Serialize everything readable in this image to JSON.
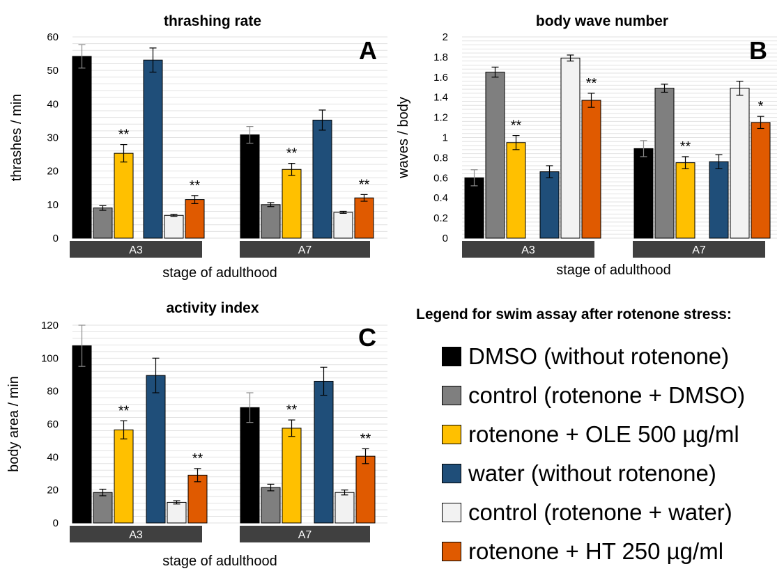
{
  "chart_data": [
    {
      "type": "bar",
      "panel_letter": "A",
      "title": "thrashing rate",
      "xlabel": "stage of adulthood",
      "ylabel": "thrashes / min",
      "ylim": [
        0,
        60
      ],
      "yticks": [
        0,
        10,
        20,
        30,
        40,
        50,
        60
      ],
      "grid": true,
      "categories": [
        "A3",
        "A7"
      ],
      "series": [
        {
          "name": "DMSO (without rotenone)",
          "values": [
            54.2,
            30.8
          ],
          "errors": [
            3.5,
            2.5
          ],
          "significance": [
            "",
            ""
          ]
        },
        {
          "name": "control (rotenone + DMSO)",
          "values": [
            9.0,
            10.0
          ],
          "errors": [
            0.7,
            0.6
          ],
          "significance": [
            "",
            ""
          ]
        },
        {
          "name": "rotenone + OLE 500 µg/ml",
          "values": [
            25.3,
            20.5
          ],
          "errors": [
            2.6,
            1.8
          ],
          "significance": [
            "**",
            "**"
          ]
        },
        {
          "name": "water (without rotenone)",
          "values": [
            53.1,
            35.2
          ],
          "errors": [
            3.6,
            3.0
          ],
          "significance": [
            "",
            ""
          ]
        },
        {
          "name": "control (rotenone + water)",
          "values": [
            6.8,
            7.7
          ],
          "errors": [
            0.3,
            0.3
          ],
          "significance": [
            "",
            ""
          ]
        },
        {
          "name": "rotenone + HT 250 µg/ml",
          "values": [
            11.5,
            12.0
          ],
          "errors": [
            1.2,
            1.0
          ],
          "significance": [
            "**",
            "**"
          ]
        }
      ]
    },
    {
      "type": "bar",
      "panel_letter": "B",
      "title": "body wave number",
      "xlabel": "stage of adulthood",
      "ylabel": "waves / body",
      "ylim": [
        0,
        2
      ],
      "yticks": [
        0,
        0.2,
        0.4,
        0.6,
        0.8,
        1,
        1.2,
        1.4,
        1.6,
        1.8,
        2
      ],
      "grid": true,
      "categories": [
        "A3",
        "A7"
      ],
      "series": [
        {
          "name": "DMSO (without rotenone)",
          "values": [
            0.6,
            0.89
          ],
          "errors": [
            0.08,
            0.08
          ],
          "significance": [
            "",
            ""
          ]
        },
        {
          "name": "control (rotenone + DMSO)",
          "values": [
            1.65,
            1.49
          ],
          "errors": [
            0.05,
            0.04
          ],
          "significance": [
            "",
            ""
          ]
        },
        {
          "name": "rotenone + OLE 500 µg/ml",
          "values": [
            0.95,
            0.75
          ],
          "errors": [
            0.07,
            0.06
          ],
          "significance": [
            "**",
            "**"
          ]
        },
        {
          "name": "water (without rotenone)",
          "values": [
            0.66,
            0.76
          ],
          "errors": [
            0.06,
            0.07
          ],
          "significance": [
            "",
            ""
          ]
        },
        {
          "name": "control (rotenone + water)",
          "values": [
            1.79,
            1.49
          ],
          "errors": [
            0.03,
            0.07
          ],
          "significance": [
            "",
            ""
          ]
        },
        {
          "name": "rotenone + HT 250 µg/ml",
          "values": [
            1.37,
            1.15
          ],
          "errors": [
            0.07,
            0.06
          ],
          "significance": [
            "**",
            "*"
          ]
        }
      ]
    },
    {
      "type": "bar",
      "panel_letter": "C",
      "title": "activity index",
      "xlabel": "stage of adulthood",
      "ylabel": "body area / min",
      "ylim": [
        0,
        120
      ],
      "yticks": [
        0,
        20,
        40,
        60,
        80,
        100,
        120
      ],
      "grid": true,
      "categories": [
        "A3",
        "A7"
      ],
      "series": [
        {
          "name": "DMSO (without rotenone)",
          "values": [
            107.5,
            70.0
          ],
          "errors": [
            12.5,
            9.0
          ],
          "significance": [
            "",
            ""
          ]
        },
        {
          "name": "control (rotenone + DMSO)",
          "values": [
            18.5,
            21.5
          ],
          "errors": [
            2.0,
            2.0
          ],
          "significance": [
            "",
            ""
          ]
        },
        {
          "name": "rotenone + OLE 500 µg/ml",
          "values": [
            56.5,
            57.5
          ],
          "errors": [
            5.5,
            5.0
          ],
          "significance": [
            "**",
            "**"
          ]
        },
        {
          "name": "water (without rotenone)",
          "values": [
            89.5,
            86.0
          ],
          "errors": [
            10.5,
            8.5
          ],
          "significance": [
            "",
            ""
          ]
        },
        {
          "name": "control (rotenone + water)",
          "values": [
            12.5,
            18.5
          ],
          "errors": [
            1.0,
            1.5
          ],
          "significance": [
            "",
            ""
          ]
        },
        {
          "name": "rotenone + HT 250 µg/ml",
          "values": [
            29.0,
            40.5
          ],
          "errors": [
            4.0,
            4.5
          ],
          "significance": [
            "**",
            "**"
          ]
        }
      ]
    }
  ],
  "series_colors": [
    "#000000",
    "#7f7f7f",
    "#ffc000",
    "#1f4e79",
    "#f2f2f2",
    "#e05a00"
  ],
  "gridline_color": "#e2e2e2",
  "category_bar_color": "#404040",
  "legend": {
    "title": "Legend for swim assay after rotenone stress:",
    "items": [
      {
        "label": "DMSO (without rotenone)",
        "color": "#000000"
      },
      {
        "label": "control (rotenone + DMSO)",
        "color": "#7f7f7f"
      },
      {
        "label": "rotenone + OLE 500 µg/ml",
        "color": "#ffc000"
      },
      {
        "label": "water (without rotenone)",
        "color": "#1f4e79"
      },
      {
        "label": "control (rotenone + water)",
        "color": "#f2f2f2"
      },
      {
        "label": "rotenone + HT 250 µg/ml",
        "color": "#e05a00"
      }
    ]
  }
}
